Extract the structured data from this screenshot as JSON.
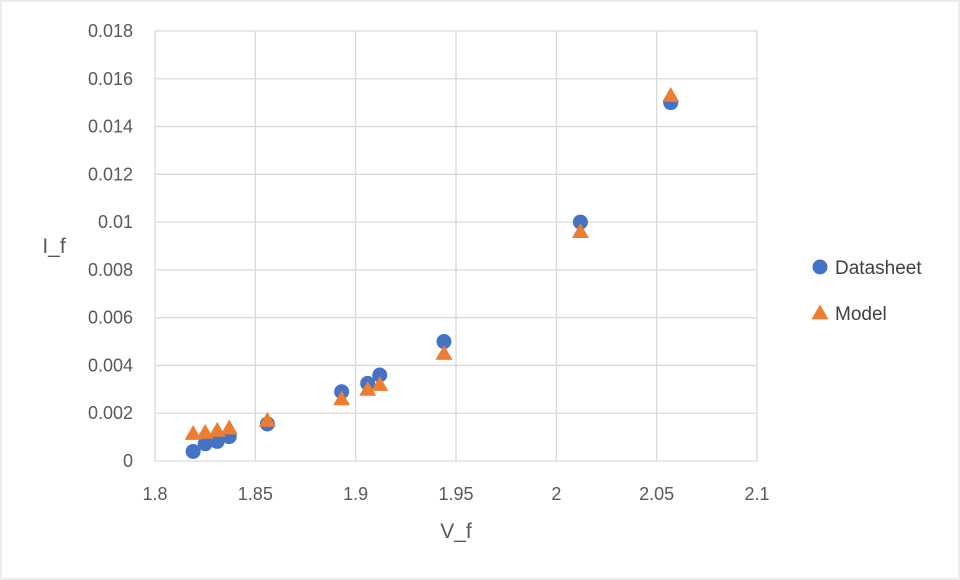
{
  "chart_data": {
    "type": "scatter",
    "xlabel": "V_f",
    "ylabel": "I_f",
    "xlim": [
      1.8,
      2.1
    ],
    "ylim": [
      0,
      0.018
    ],
    "x_ticks": [
      1.8,
      1.85,
      1.9,
      1.95,
      2,
      2.05,
      2.1
    ],
    "x_tick_labels": [
      "1.8",
      "1.85",
      "1.9",
      "1.95",
      "2",
      "2.05",
      "2.1"
    ],
    "y_ticks": [
      0,
      0.002,
      0.004,
      0.006,
      0.008,
      0.01,
      0.012,
      0.014,
      0.016,
      0.018
    ],
    "y_tick_labels": [
      "0",
      "0.002",
      "0.004",
      "0.006",
      "0.008",
      "0.01",
      "0.012",
      "0.014",
      "0.016",
      "0.018"
    ],
    "grid": true,
    "legend_position": "right",
    "series": [
      {
        "name": "Datasheet",
        "marker": "circle",
        "color": "#4472C4",
        "x": [
          1.819,
          1.825,
          1.831,
          1.837,
          1.856,
          1.893,
          1.906,
          1.912,
          1.944,
          2.012,
          2.057
        ],
        "y": [
          0.0004,
          0.00072,
          0.00082,
          0.00102,
          0.00155,
          0.0029,
          0.00325,
          0.0036,
          0.005,
          0.01,
          0.015
        ]
      },
      {
        "name": "Model",
        "marker": "triangle",
        "color": "#ED7D31",
        "x": [
          1.819,
          1.825,
          1.831,
          1.837,
          1.856,
          1.893,
          1.906,
          1.912,
          1.944,
          2.012,
          2.057
        ],
        "y": [
          0.00115,
          0.0012,
          0.00128,
          0.00138,
          0.0017,
          0.0026,
          0.003,
          0.0032,
          0.0045,
          0.0096,
          0.0153
        ]
      }
    ]
  }
}
